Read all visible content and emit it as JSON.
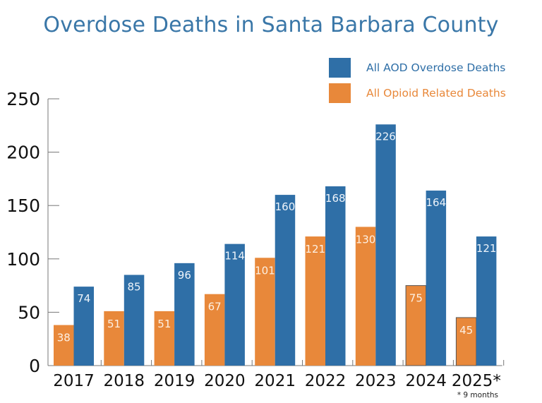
{
  "chart_data": {
    "type": "bar",
    "title": "Overdose Deaths in Santa Barbara County",
    "xlabel": "",
    "ylabel": "",
    "categories": [
      "2017",
      "2018",
      "2019",
      "2020",
      "2021",
      "2022",
      "2023",
      "2024",
      "2025*"
    ],
    "series": [
      {
        "name": "All Opioid Related Deaths",
        "color": "#e8883a",
        "values": [
          38,
          51,
          51,
          67,
          101,
          121,
          130,
          75,
          45
        ]
      },
      {
        "name": "All AOD Overdose Deaths",
        "color": "#2f6fa7",
        "values": [
          74,
          85,
          96,
          114,
          160,
          168,
          226,
          164,
          121
        ]
      }
    ],
    "ylim": [
      0,
      250
    ],
    "yticks": [
      0,
      50,
      100,
      150,
      200,
      250
    ],
    "grid": false,
    "legend": "top-right",
    "legend_order": [
      "All AOD Overdose Deaths",
      "All Opioid Related Deaths"
    ],
    "footnote": "* 9 months",
    "data_labels": true
  }
}
